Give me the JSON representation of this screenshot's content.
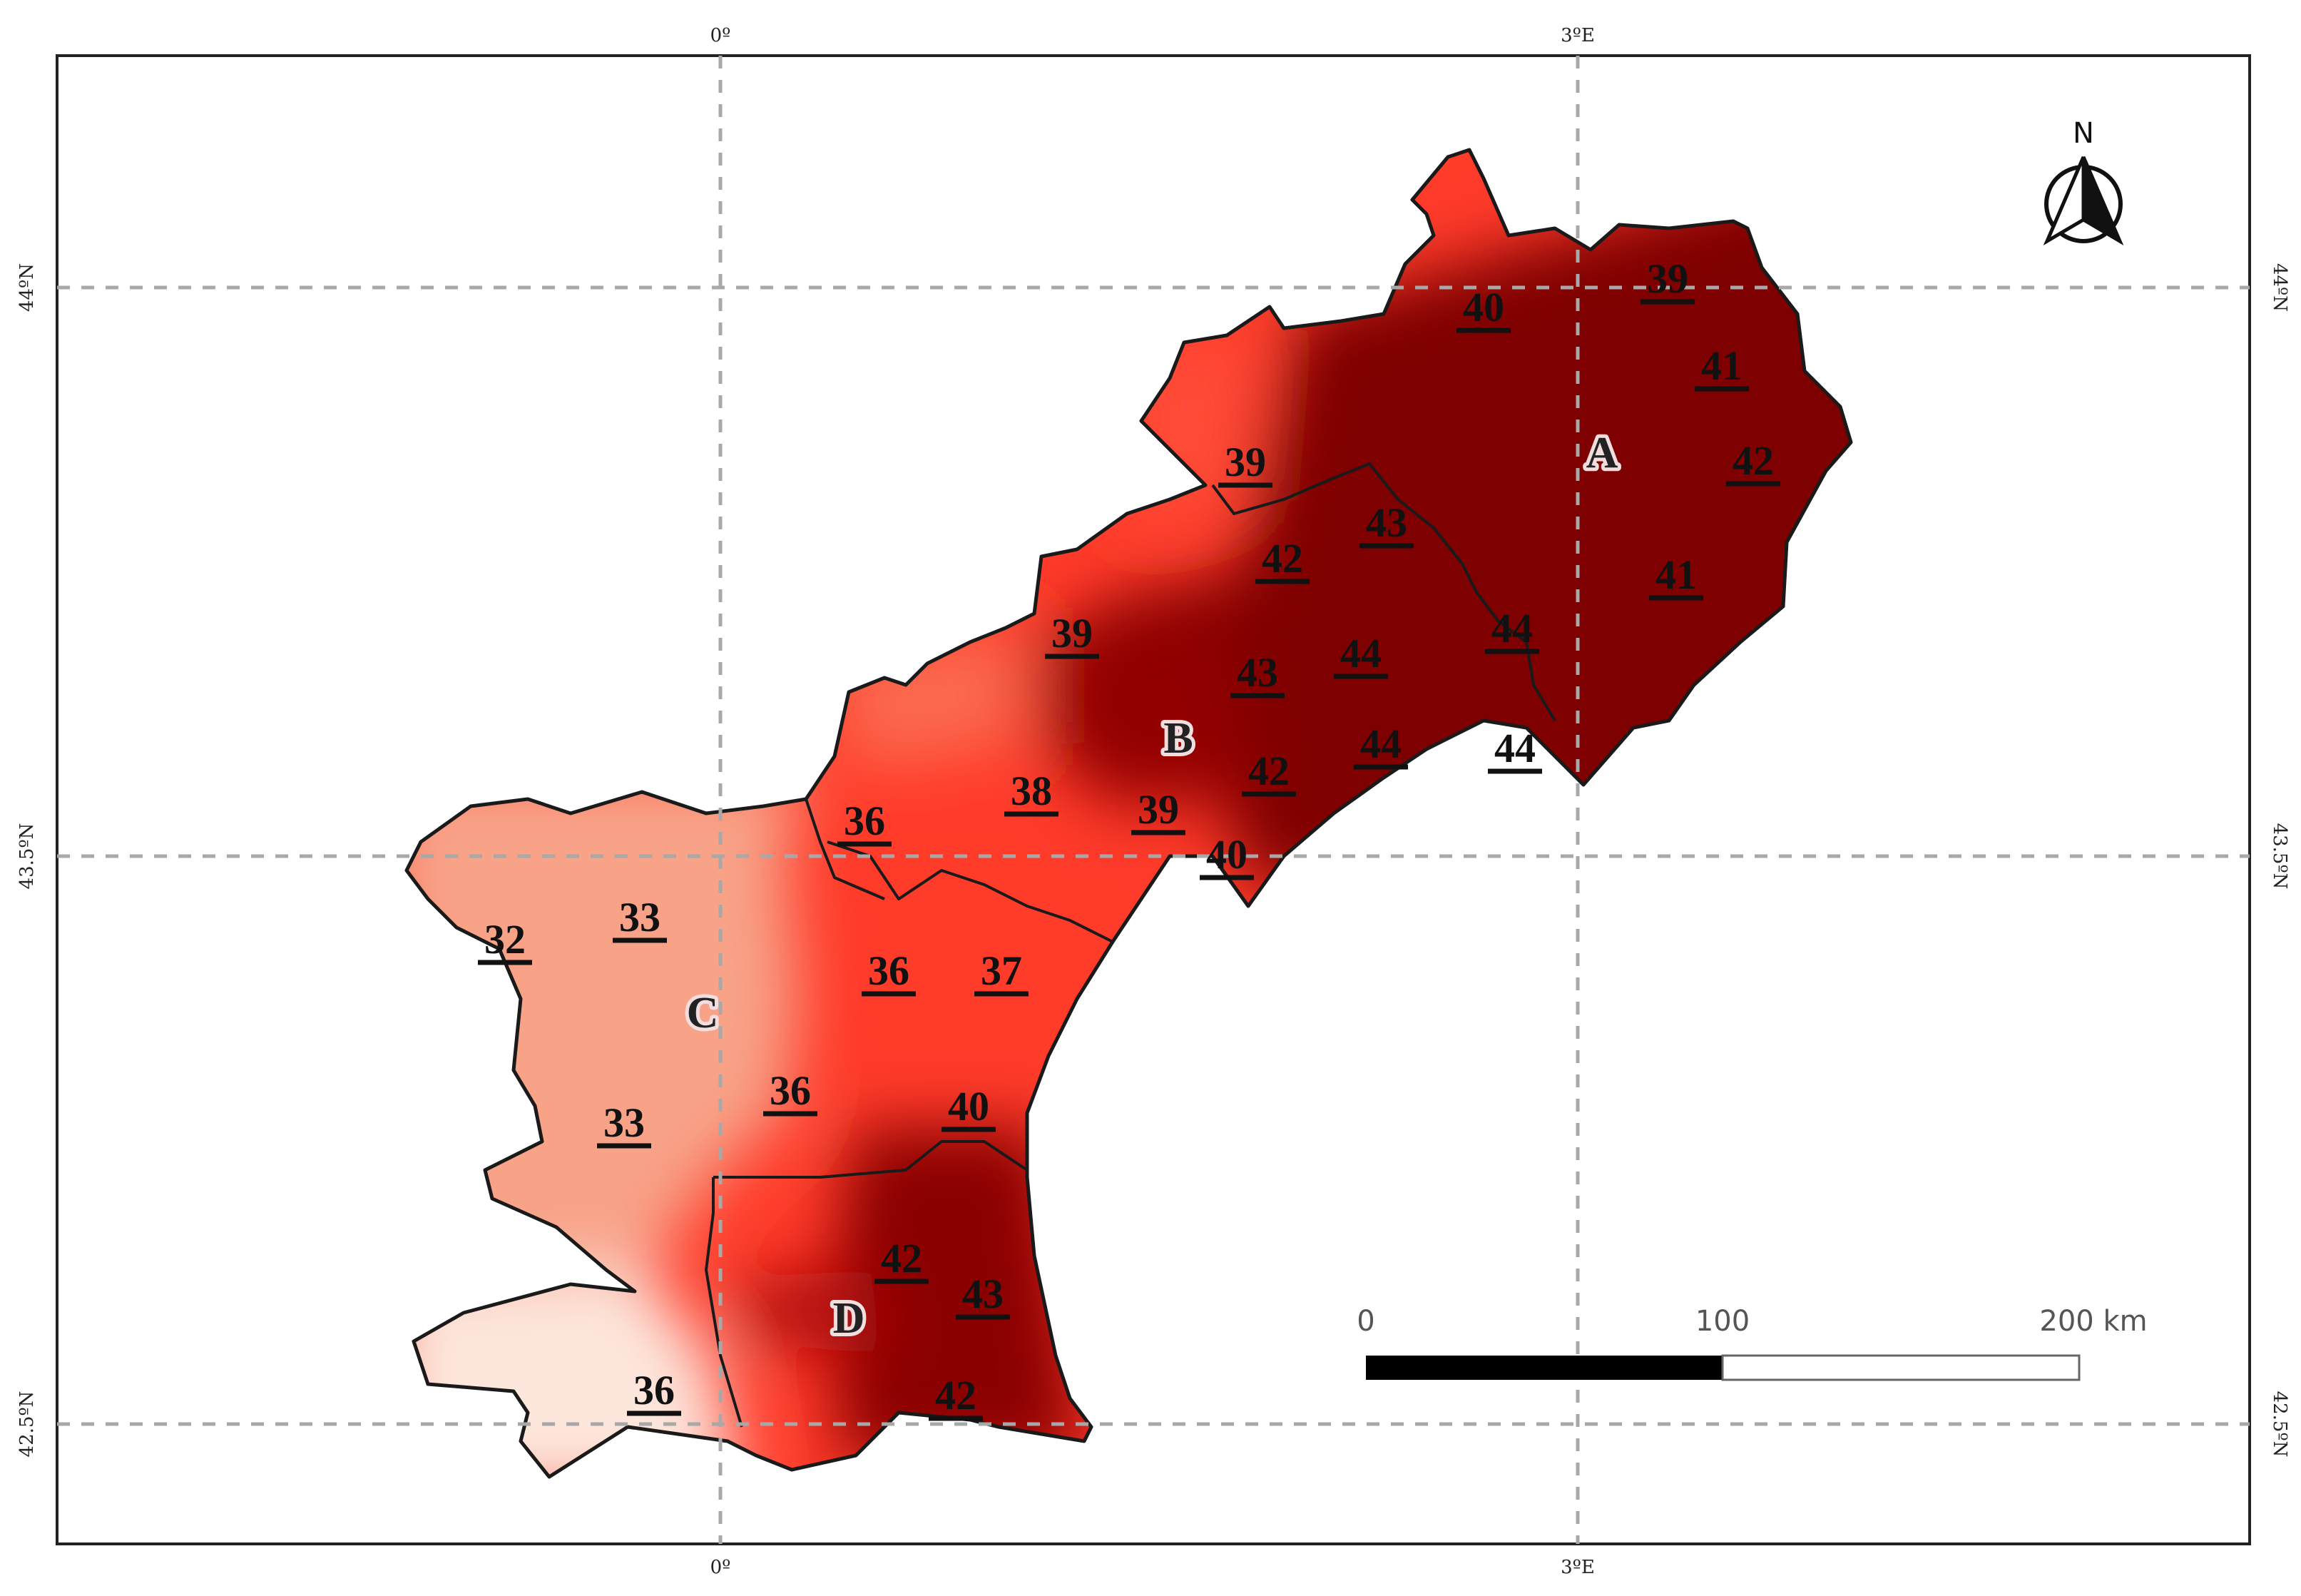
{
  "map": {
    "graticule": {
      "longitudes": [
        "0º",
        "3ºE"
      ],
      "latitudes": [
        "44ºN",
        "43.5ºN",
        "42.5ºN"
      ]
    },
    "regions": [
      {
        "id": "A",
        "label": "A",
        "color": "#800000"
      },
      {
        "id": "B",
        "label": "B",
        "color": "#ff3b2a"
      },
      {
        "id": "C",
        "label": "C",
        "color": "#f9a28a"
      },
      {
        "id": "D",
        "label": "D",
        "color": "#b30d0d"
      }
    ],
    "stations": [
      {
        "value": "40",
        "region": "A"
      },
      {
        "value": "39",
        "region": "A"
      },
      {
        "value": "41",
        "region": "A"
      },
      {
        "value": "42",
        "region": "A"
      },
      {
        "value": "41",
        "region": "A"
      },
      {
        "value": "39",
        "region": "B"
      },
      {
        "value": "43",
        "region": "A"
      },
      {
        "value": "42",
        "region": "A"
      },
      {
        "value": "44",
        "region": "A"
      },
      {
        "value": "39",
        "region": "B"
      },
      {
        "value": "43",
        "region": "A"
      },
      {
        "value": "44",
        "region": "A"
      },
      {
        "value": "44",
        "region": "A"
      },
      {
        "value": "44",
        "region": "A"
      },
      {
        "value": "42",
        "region": "B"
      },
      {
        "value": "38",
        "region": "B"
      },
      {
        "value": "36",
        "region": "B"
      },
      {
        "value": "39",
        "region": "B"
      },
      {
        "value": "40",
        "region": "B"
      },
      {
        "value": "36",
        "region": "B"
      },
      {
        "value": "37",
        "region": "B"
      },
      {
        "value": "32",
        "region": "C"
      },
      {
        "value": "33",
        "region": "C"
      },
      {
        "value": "33",
        "region": "C"
      },
      {
        "value": "36",
        "region": "C"
      },
      {
        "value": "40",
        "region": "B"
      },
      {
        "value": "42",
        "region": "D"
      },
      {
        "value": "43",
        "region": "D"
      },
      {
        "value": "36",
        "region": "D"
      },
      {
        "value": "42",
        "region": "D"
      }
    ],
    "north_arrow": {
      "label": "N"
    },
    "scale_bar": {
      "labels": [
        "0",
        "100",
        "200 km"
      ]
    }
  }
}
